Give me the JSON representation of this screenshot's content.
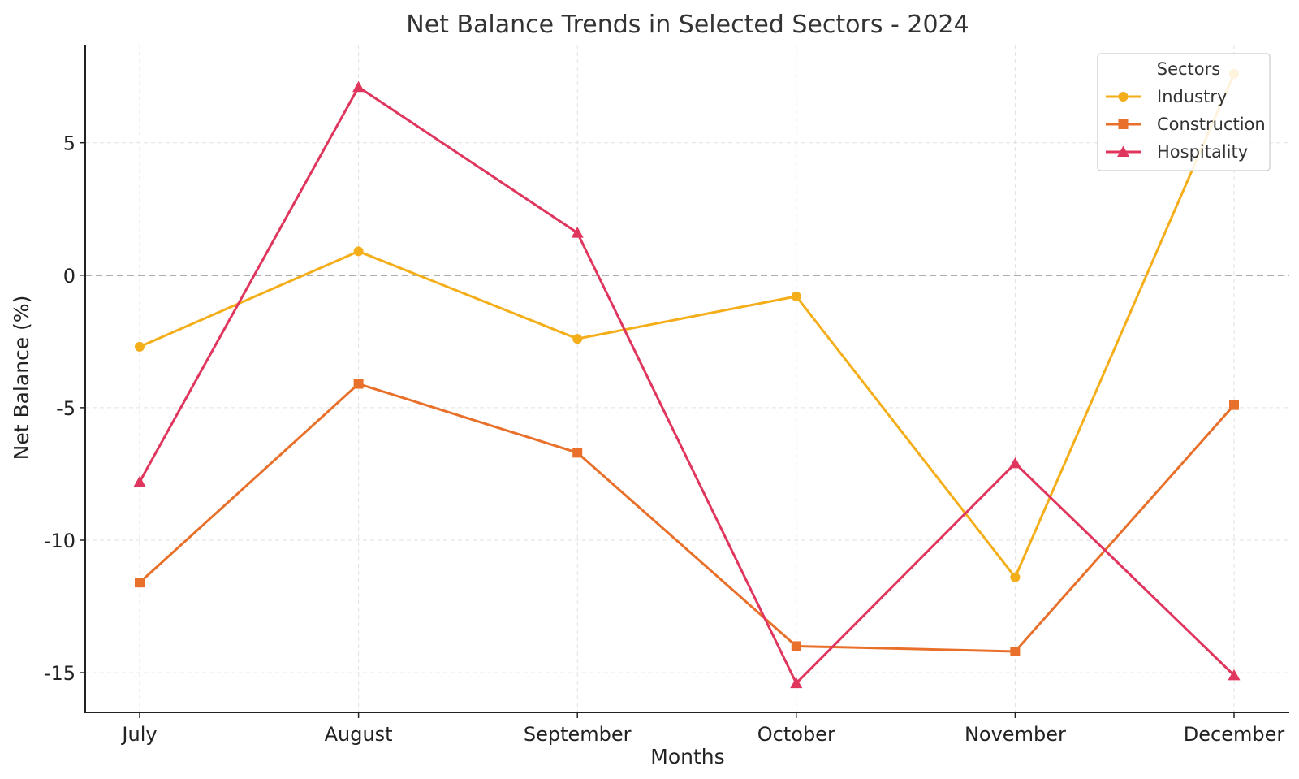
{
  "chart_data": {
    "type": "line",
    "title": "Net Balance Trends in Selected Sectors - 2024",
    "xlabel": "Months",
    "ylabel": "Net Balance (%)",
    "categories": [
      "July",
      "August",
      "September",
      "October",
      "November",
      "December"
    ],
    "ylim": [
      -16.5,
      8.7
    ],
    "yticks": [
      5,
      0,
      -5,
      -10,
      -15
    ],
    "ytick_labels": [
      "5",
      "0",
      "-5",
      "-10",
      "-15"
    ],
    "grid": true,
    "reference_line": 0,
    "legend": {
      "title": "Sectors",
      "position": "top-right"
    },
    "series": [
      {
        "name": "Industry",
        "color": "#F4AE1A",
        "marker": "circle",
        "values": [
          -2.7,
          0.9,
          -2.4,
          -0.8,
          -11.4,
          7.6
        ]
      },
      {
        "name": "Construction",
        "color": "#E8702A",
        "marker": "square",
        "values": [
          -11.6,
          -4.1,
          -6.7,
          -14.0,
          -14.2,
          -4.9
        ]
      },
      {
        "name": "Hospitality",
        "color": "#E0365E",
        "marker": "triangle",
        "values": [
          -7.8,
          7.1,
          1.6,
          -15.4,
          -7.1,
          -15.1
        ]
      }
    ]
  }
}
